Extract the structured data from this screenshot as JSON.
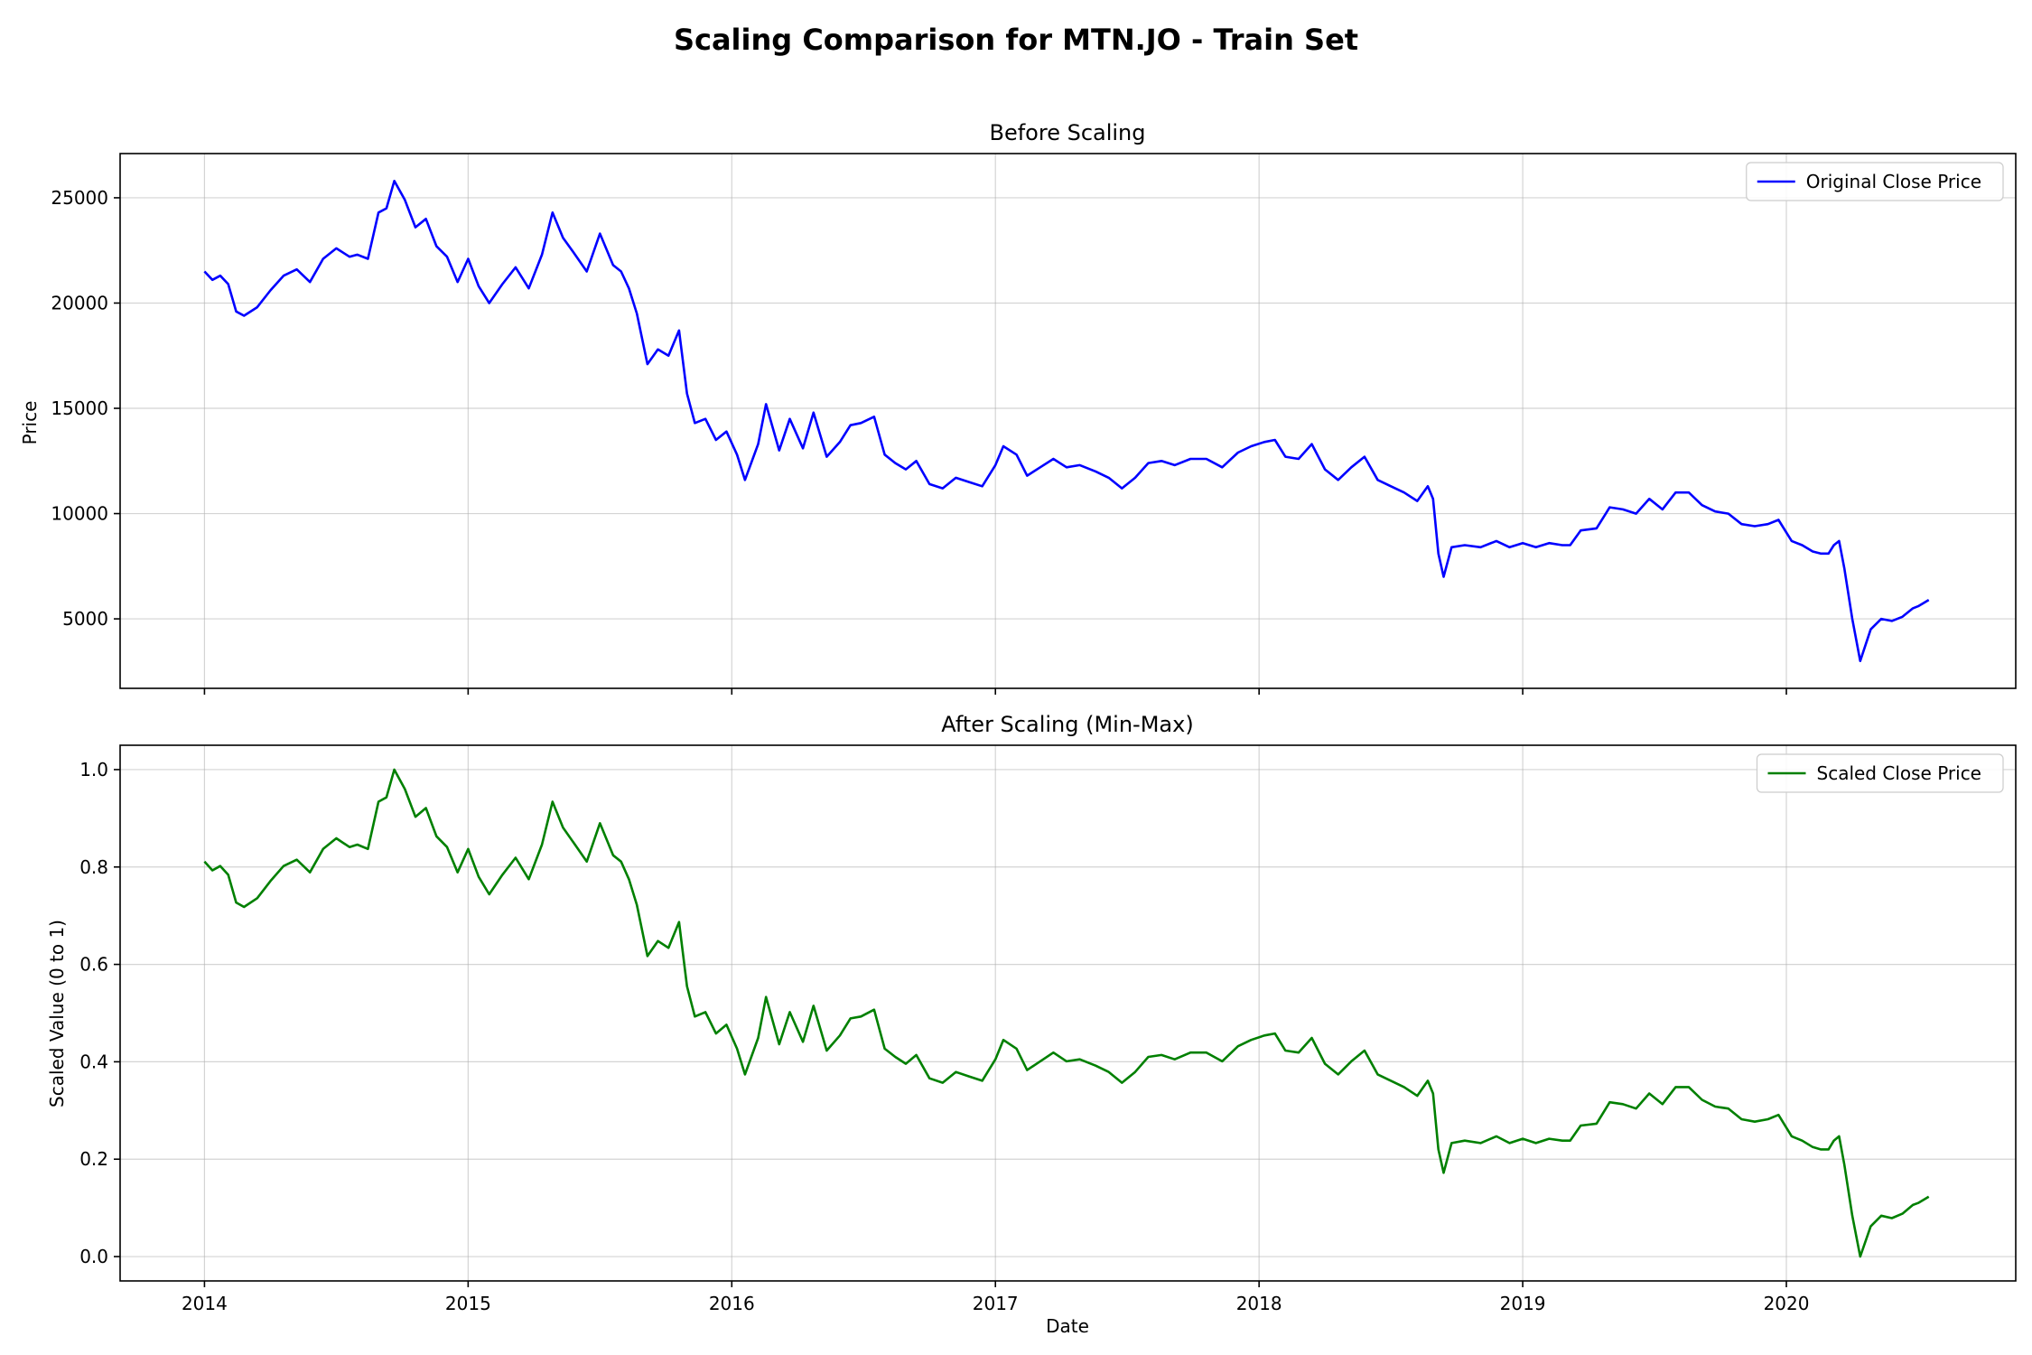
{
  "chart_data": {
    "type": "line",
    "title": "Scaling Comparison for MTN.JO - Train Set",
    "panels": [
      {
        "title": "Before Scaling",
        "ylabel": "Price",
        "xlabel": "",
        "ylim": [
          1700,
          27100
        ],
        "yticks": [
          5000,
          10000,
          15000,
          20000,
          25000
        ],
        "xlim": [
          2013.68,
          2020.87
        ],
        "xticks": [
          2014,
          2015,
          2016,
          2017,
          2018,
          2019,
          2020
        ],
        "show_xtick_labels": false,
        "grid": true,
        "legend": "top-right",
        "series": [
          {
            "name": "Original Close Price",
            "color": "#0000ff",
            "x": [
              2014.0,
              2014.03,
              2014.06,
              2014.09,
              2014.12,
              2014.15,
              2014.2,
              2014.25,
              2014.3,
              2014.35,
              2014.4,
              2014.45,
              2014.5,
              2014.55,
              2014.58,
              2014.62,
              2014.66,
              2014.69,
              2014.72,
              2014.76,
              2014.8,
              2014.84,
              2014.88,
              2014.92,
              2014.96,
              2015.0,
              2015.04,
              2015.08,
              2015.13,
              2015.18,
              2015.23,
              2015.28,
              2015.32,
              2015.36,
              2015.4,
              2015.45,
              2015.5,
              2015.55,
              2015.58,
              2015.61,
              2015.64,
              2015.68,
              2015.72,
              2015.76,
              2015.8,
              2015.83,
              2015.86,
              2015.9,
              2015.94,
              2015.98,
              2016.02,
              2016.05,
              2016.1,
              2016.13,
              2016.18,
              2016.22,
              2016.27,
              2016.31,
              2016.36,
              2016.41,
              2016.45,
              2016.49,
              2016.54,
              2016.58,
              2016.62,
              2016.66,
              2016.7,
              2016.75,
              2016.8,
              2016.85,
              2016.9,
              2016.95,
              2017.0,
              2017.03,
              2017.08,
              2017.12,
              2017.17,
              2017.22,
              2017.27,
              2017.32,
              2017.38,
              2017.43,
              2017.48,
              2017.53,
              2017.58,
              2017.63,
              2017.68,
              2017.74,
              2017.8,
              2017.86,
              2017.92,
              2017.97,
              2018.02,
              2018.06,
              2018.1,
              2018.15,
              2018.2,
              2018.25,
              2018.3,
              2018.35,
              2018.4,
              2018.45,
              2018.5,
              2018.55,
              2018.6,
              2018.64,
              2018.66,
              2018.68,
              2018.7,
              2018.73,
              2018.78,
              2018.84,
              2018.9,
              2018.95,
              2019.0,
              2019.05,
              2019.1,
              2019.15,
              2019.18,
              2019.22,
              2019.28,
              2019.33,
              2019.38,
              2019.43,
              2019.48,
              2019.53,
              2019.58,
              2019.63,
              2019.68,
              2019.73,
              2019.78,
              2019.83,
              2019.88,
              2019.93,
              2019.97,
              2020.02,
              2020.06,
              2020.1,
              2020.13,
              2020.16,
              2020.18,
              2020.2,
              2020.22,
              2020.25,
              2020.28,
              2020.32,
              2020.36,
              2020.4,
              2020.44,
              2020.48,
              2020.5,
              2020.54
            ],
            "y": [
              21500,
              21100,
              21300,
              20900,
              19600,
              19400,
              19800,
              20600,
              21300,
              21600,
              21000,
              22100,
              22600,
              22200,
              22300,
              22100,
              24300,
              24500,
              25800,
              24900,
              23600,
              24000,
              22700,
              22200,
              21000,
              22100,
              20800,
              20000,
              20900,
              21700,
              20700,
              22300,
              24300,
              23100,
              22400,
              21500,
              23300,
              21800,
              21500,
              20700,
              19500,
              17100,
              17800,
              17500,
              18700,
              15700,
              14300,
              14500,
              13500,
              13900,
              12800,
              11600,
              13300,
              15200,
              13000,
              14500,
              13100,
              14800,
              12700,
              13400,
              14200,
              14300,
              14600,
              12800,
              12400,
              12100,
              12500,
              11400,
              11200,
              11700,
              11500,
              11300,
              12300,
              13200,
              12800,
              11800,
              12200,
              12600,
              12200,
              12300,
              12000,
              11700,
              11200,
              11700,
              12400,
              12500,
              12300,
              12600,
              12600,
              12200,
              12900,
              13200,
              13400,
              13500,
              12700,
              12600,
              13300,
              12100,
              11600,
              12200,
              12700,
              11600,
              11300,
              11000,
              10600,
              11300,
              10700,
              8100,
              7000,
              8400,
              8500,
              8400,
              8700,
              8400,
              8600,
              8400,
              8600,
              8500,
              8500,
              9200,
              9300,
              10300,
              10200,
              10000,
              10700,
              10200,
              11000,
              11000,
              10400,
              10100,
              10000,
              9500,
              9400,
              9500,
              9700,
              8700,
              8500,
              8200,
              8100,
              8100,
              8500,
              8700,
              7400,
              5000,
              3000,
              4500,
              5000,
              4900,
              5100,
              5500,
              5600,
              5900
            ]
          }
        ]
      },
      {
        "title": "After Scaling (Min-Max)",
        "ylabel": "Scaled Value (0 to 1)",
        "xlabel": "Date",
        "ylim": [
          -0.05,
          1.05
        ],
        "yticks": [
          0.0,
          0.2,
          0.4,
          0.6,
          0.8,
          1.0
        ],
        "ytick_labels": [
          "0.0",
          "0.2",
          "0.4",
          "0.6",
          "0.8",
          "1.0"
        ],
        "xlim": [
          2013.68,
          2020.87
        ],
        "xticks": [
          2014,
          2015,
          2016,
          2017,
          2018,
          2019,
          2020
        ],
        "xtick_labels": [
          "2014",
          "2015",
          "2016",
          "2017",
          "2018",
          "2019",
          "2020"
        ],
        "show_xtick_labels": true,
        "grid": true,
        "legend": "top-right",
        "series": [
          {
            "name": "Scaled Close Price",
            "color": "#008000",
            "x": [
              2014.0,
              2014.03,
              2014.06,
              2014.09,
              2014.12,
              2014.15,
              2014.2,
              2014.25,
              2014.3,
              2014.35,
              2014.4,
              2014.45,
              2014.5,
              2014.55,
              2014.58,
              2014.62,
              2014.66,
              2014.69,
              2014.72,
              2014.76,
              2014.8,
              2014.84,
              2014.88,
              2014.92,
              2014.96,
              2015.0,
              2015.04,
              2015.08,
              2015.13,
              2015.18,
              2015.23,
              2015.28,
              2015.32,
              2015.36,
              2015.4,
              2015.45,
              2015.5,
              2015.55,
              2015.58,
              2015.61,
              2015.64,
              2015.68,
              2015.72,
              2015.76,
              2015.8,
              2015.83,
              2015.86,
              2015.9,
              2015.94,
              2015.98,
              2016.02,
              2016.05,
              2016.1,
              2016.13,
              2016.18,
              2016.22,
              2016.27,
              2016.31,
              2016.36,
              2016.41,
              2016.45,
              2016.49,
              2016.54,
              2016.58,
              2016.62,
              2016.66,
              2016.7,
              2016.75,
              2016.8,
              2016.85,
              2016.9,
              2016.95,
              2017.0,
              2017.03,
              2017.08,
              2017.12,
              2017.17,
              2017.22,
              2017.27,
              2017.32,
              2017.38,
              2017.43,
              2017.48,
              2017.53,
              2017.58,
              2017.63,
              2017.68,
              2017.74,
              2017.8,
              2017.86,
              2017.92,
              2017.97,
              2018.02,
              2018.06,
              2018.1,
              2018.15,
              2018.2,
              2018.25,
              2018.3,
              2018.35,
              2018.4,
              2018.45,
              2018.5,
              2018.55,
              2018.6,
              2018.64,
              2018.66,
              2018.68,
              2018.7,
              2018.73,
              2018.78,
              2018.84,
              2018.9,
              2018.95,
              2019.0,
              2019.05,
              2019.1,
              2019.15,
              2019.18,
              2019.22,
              2019.28,
              2019.33,
              2019.38,
              2019.43,
              2019.48,
              2019.53,
              2019.58,
              2019.63,
              2019.68,
              2019.73,
              2019.78,
              2019.83,
              2019.88,
              2019.93,
              2019.97,
              2020.02,
              2020.06,
              2020.1,
              2020.13,
              2020.16,
              2020.18,
              2020.2,
              2020.22,
              2020.25,
              2020.28,
              2020.32,
              2020.36,
              2020.4,
              2020.44,
              2020.48,
              2020.5,
              2020.54
            ],
            "y": [
              0.811,
              0.793,
              0.802,
              0.784,
              0.727,
              0.718,
              0.736,
              0.771,
              0.802,
              0.815,
              0.789,
              0.837,
              0.859,
              0.841,
              0.846,
              0.837,
              0.934,
              0.943,
              1.0,
              0.96,
              0.903,
              0.921,
              0.863,
              0.841,
              0.789,
              0.837,
              0.78,
              0.744,
              0.784,
              0.819,
              0.775,
              0.846,
              0.934,
              0.881,
              0.85,
              0.811,
              0.89,
              0.824,
              0.811,
              0.775,
              0.722,
              0.617,
              0.648,
              0.634,
              0.687,
              0.555,
              0.493,
              0.502,
              0.458,
              0.476,
              0.427,
              0.374,
              0.449,
              0.533,
              0.436,
              0.502,
              0.441,
              0.515,
              0.423,
              0.454,
              0.489,
              0.493,
              0.507,
              0.427,
              0.41,
              0.396,
              0.414,
              0.366,
              0.357,
              0.379,
              0.37,
              0.361,
              0.405,
              0.445,
              0.427,
              0.383,
              0.401,
              0.419,
              0.401,
              0.405,
              0.392,
              0.379,
              0.357,
              0.379,
              0.41,
              0.414,
              0.405,
              0.419,
              0.419,
              0.401,
              0.432,
              0.445,
              0.454,
              0.458,
              0.423,
              0.419,
              0.449,
              0.396,
              0.374,
              0.401,
              0.423,
              0.374,
              0.361,
              0.348,
              0.33,
              0.361,
              0.335,
              0.22,
              0.172,
              0.233,
              0.238,
              0.233,
              0.247,
              0.233,
              0.242,
              0.233,
              0.242,
              0.238,
              0.238,
              0.269,
              0.273,
              0.317,
              0.313,
              0.304,
              0.335,
              0.313,
              0.348,
              0.348,
              0.322,
              0.308,
              0.304,
              0.282,
              0.277,
              0.282,
              0.291,
              0.247,
              0.238,
              0.225,
              0.22,
              0.22,
              0.238,
              0.247,
              0.189,
              0.084,
              0.0,
              0.062,
              0.084,
              0.079,
              0.088,
              0.106,
              0.11,
              0.123
            ]
          }
        ]
      }
    ]
  }
}
